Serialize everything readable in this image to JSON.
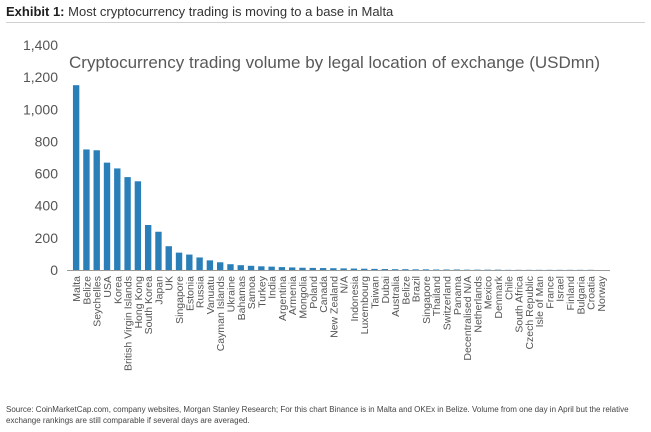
{
  "exhibit": {
    "label": "Exhibit 1:",
    "title": "Most cryptocurrency trading is moving to a base in Malta"
  },
  "chart_data": {
    "type": "bar",
    "title": "Cryptocurrency trading volume by legal location of exchange (USDmn)",
    "xlabel": "",
    "ylabel": "",
    "ylim": [
      0,
      1400
    ],
    "yticks": [
      0,
      200,
      400,
      600,
      800,
      1000,
      1200,
      1400
    ],
    "ytick_labels": [
      "0",
      "200",
      "400",
      "600",
      "800",
      "1,000",
      "1,200",
      "1,400"
    ],
    "grid": false,
    "bar_color": "#2a7fb8",
    "categories": [
      "Malta",
      "Belize",
      "Seychelles",
      "USA",
      "Korea",
      "British Virgin Islands",
      "Hong Kong",
      "South Korea",
      "Japan",
      "UK",
      "Singapore",
      "Estonia",
      "Russia",
      "Vanuatu",
      "Cayman Islands",
      "Ukraine",
      "Bahamas",
      "Samoa",
      "Turkey",
      "India",
      "Argentina",
      "Armenia",
      "Mongolia",
      "Poland",
      "Canada",
      "New Zealand",
      "N/A",
      "Indonesia",
      "Luxembourg",
      "Taiwan",
      "Dubai",
      "Australia",
      "Belize",
      "Brazil",
      "Singapore",
      "Thailand",
      "Switzerland",
      "Panama",
      "Decentralised N/A",
      "Netherlands",
      "Mexico",
      "Denmark",
      "Chile",
      "South Africa",
      "Czech Republic",
      "Isle of Man",
      "France",
      "Israel",
      "Finland",
      "Bulgaria",
      "Croatia",
      "Norway"
    ],
    "values": [
      1150,
      750,
      745,
      668,
      632,
      578,
      552,
      280,
      238,
      148,
      108,
      96,
      78,
      60,
      48,
      36,
      30,
      26,
      23,
      21,
      18,
      16,
      14,
      13,
      12,
      11,
      10,
      9,
      8,
      7,
      6,
      5,
      5,
      4,
      4,
      3,
      3,
      3,
      2,
      2,
      2,
      2,
      1,
      1,
      1,
      1,
      1,
      1,
      1,
      1,
      1,
      0
    ]
  },
  "source": "Source: CoinMarketCap.com, company websites, Morgan Stanley Research; For this chart Binance is in Malta and OKEx in Belize. Volume from one day in April but the relative exchange rankings are still comparable if several days are averaged."
}
